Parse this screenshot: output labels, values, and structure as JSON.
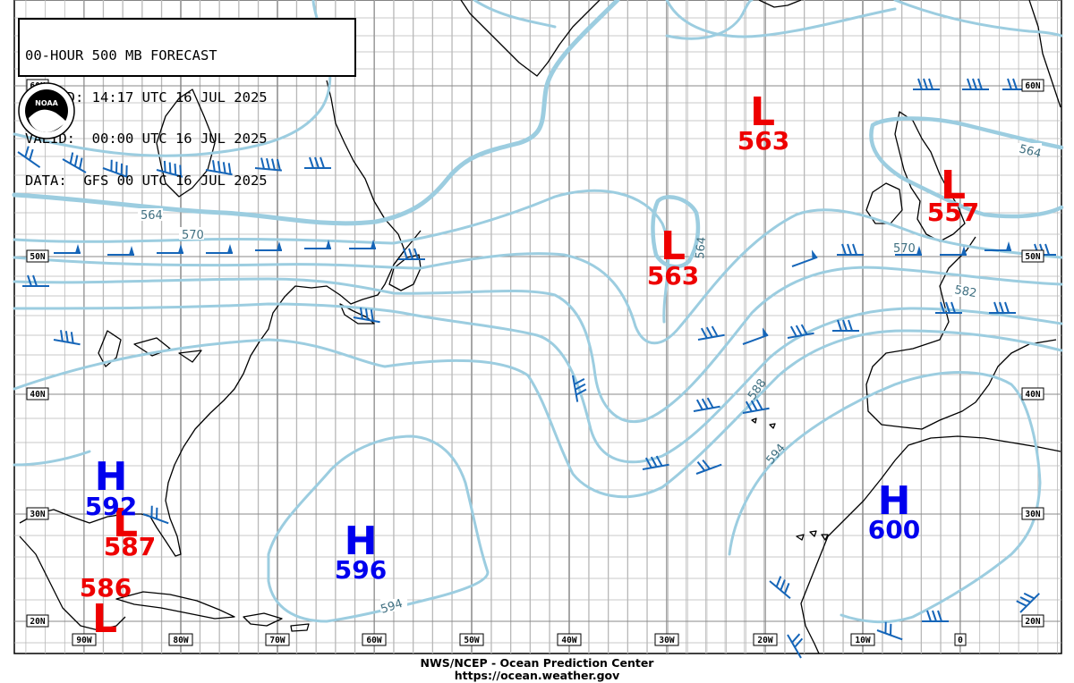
{
  "title_box": {
    "line1": "00-HOUR 500 MB FORECAST",
    "line2": "ISSUED: 14:17 UTC 16 JUL 2025",
    "line3": "VALID:  00:00 UTC 16 JUL 2025",
    "line4": "DATA:  GFS 00 UTC 16 JUL 2025"
  },
  "footer": {
    "line1": "NWS/NCEP - Ocean Prediction Center",
    "line2": "https://ocean.weather.gov"
  },
  "logo": {
    "text": "NOAA"
  },
  "lat_labels": [
    "60N",
    "50N",
    "40N",
    "30N",
    "20N"
  ],
  "lon_labels": [
    "90W",
    "80W",
    "70W",
    "60W",
    "50W",
    "40W",
    "30W",
    "20W",
    "10W",
    "0"
  ],
  "contour_labels": [
    "564",
    "570",
    "564",
    "564",
    "570",
    "582",
    "588",
    "594",
    "594"
  ],
  "pressure_centers": [
    {
      "letter": "L",
      "value": "563",
      "color": "#ee0000"
    },
    {
      "letter": "L",
      "value": "563",
      "color": "#ee0000"
    },
    {
      "letter": "L",
      "value": "557",
      "color": "#ee0000"
    },
    {
      "letter": "H",
      "value": "592",
      "color": "#0000ee"
    },
    {
      "letter": "L",
      "value": "587",
      "color": "#ee0000"
    },
    {
      "letter": "L",
      "value": "586",
      "color": "#ee0000"
    },
    {
      "letter": "H",
      "value": "596",
      "color": "#0000ee"
    },
    {
      "letter": "H",
      "value": "600",
      "color": "#0000ee"
    }
  ],
  "colors": {
    "contour": "#9ccde0",
    "contour_label": "#3f6f80",
    "barb": "#1565b8",
    "high": "#0000ee",
    "low": "#ee0000",
    "grid": "#b8b8b8"
  }
}
